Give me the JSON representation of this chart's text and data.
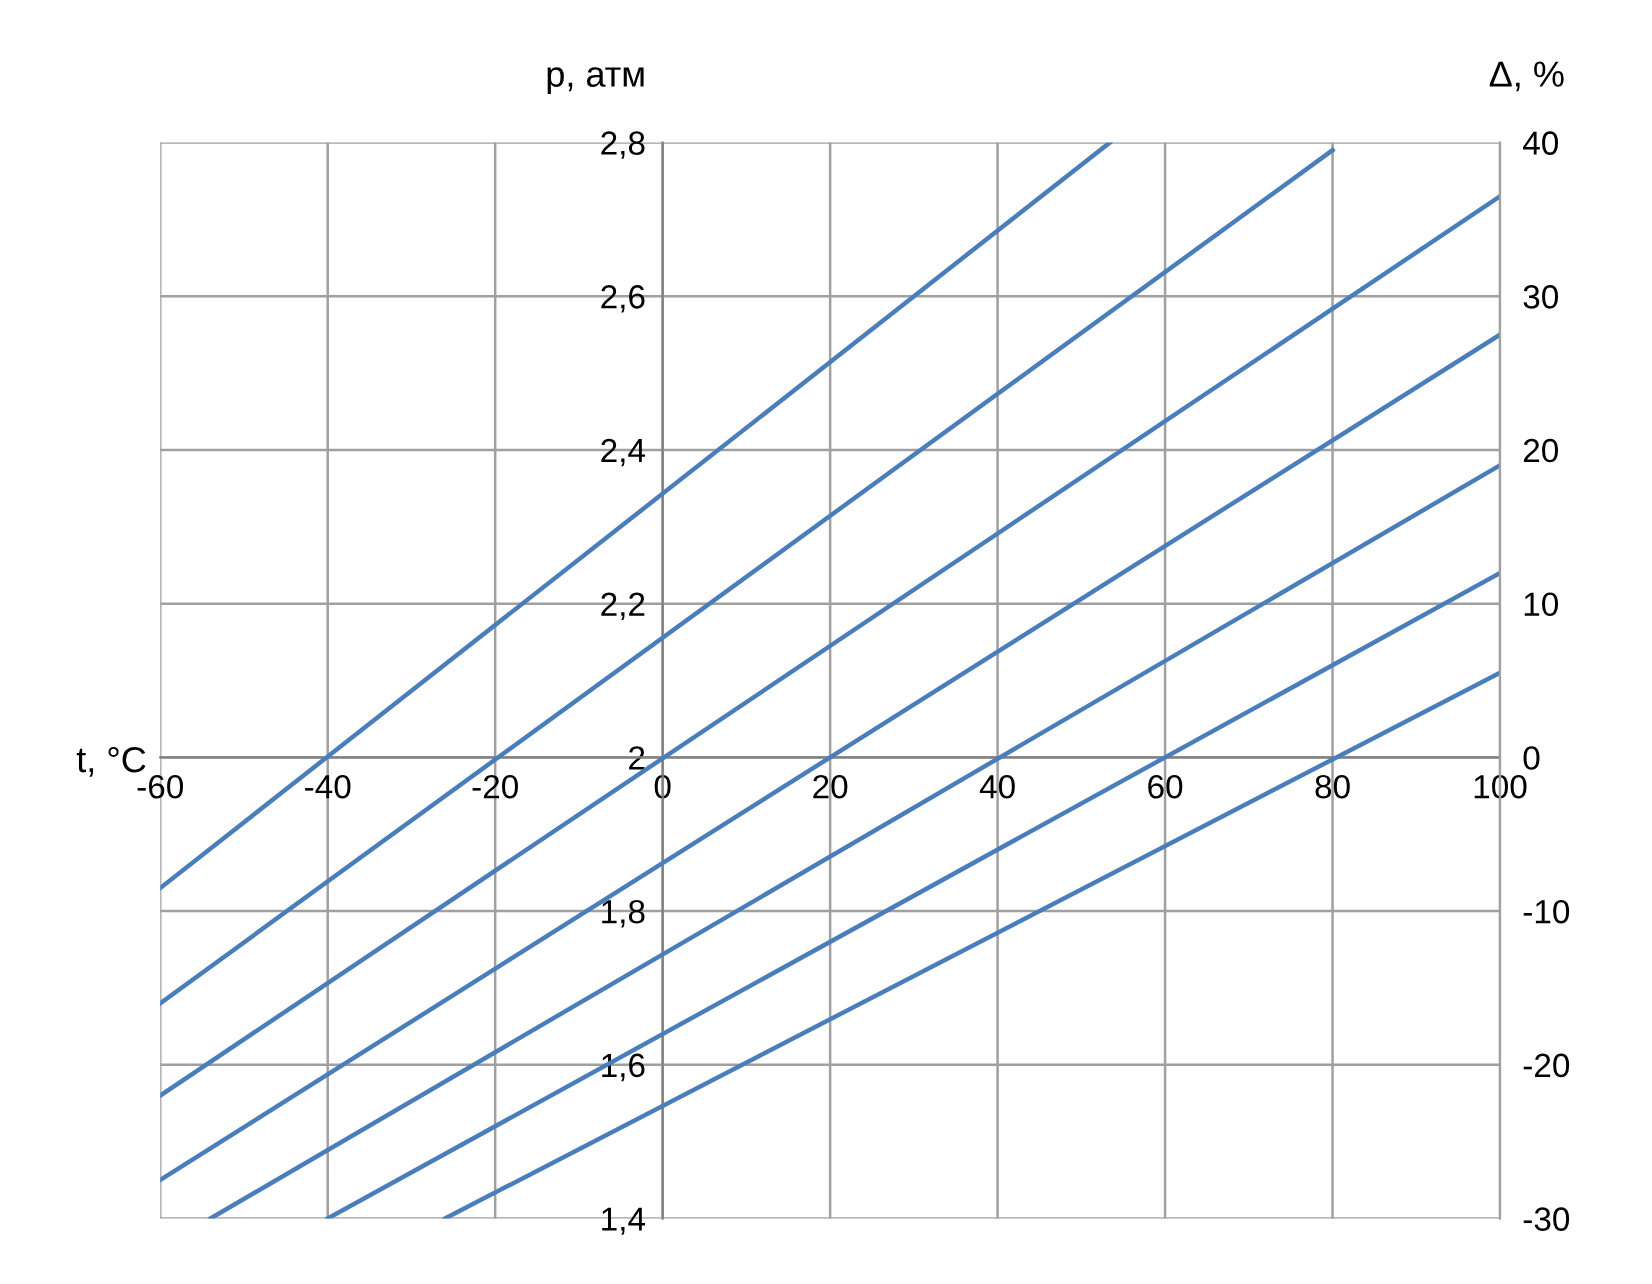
{
  "chart_data": {
    "type": "line",
    "xlabel": "t, °C",
    "ylabel": "p, атм",
    "y2label": "Δ, %",
    "series": [
      {
        "color": "#4a7ebb",
        "x": [
          -60,
          53.4
        ],
        "values": [
          1.83,
          2.8
        ]
      },
      {
        "color": "#4a7ebb",
        "x": [
          -60,
          80
        ],
        "values": [
          1.68,
          2.79
        ]
      },
      {
        "color": "#4a7ebb",
        "x": [
          -60,
          100
        ],
        "values": [
          1.56,
          2.73
        ]
      },
      {
        "color": "#4a7ebb",
        "x": [
          -60,
          100
        ],
        "values": [
          1.45,
          2.55
        ]
      },
      {
        "color": "#4a7ebb",
        "x": [
          -54,
          100
        ],
        "values": [
          1.4,
          2.38
        ]
      },
      {
        "color": "#4a7ebb",
        "x": [
          -40,
          100
        ],
        "values": [
          1.4,
          2.24
        ]
      },
      {
        "color": "#4a7ebb",
        "x": [
          -26,
          100
        ],
        "values": [
          1.4,
          2.11
        ]
      }
    ],
    "xlim": [
      -60,
      100
    ],
    "xticks": [
      -60,
      -40,
      -20,
      0,
      20,
      40,
      60,
      80,
      100
    ],
    "ylim": [
      1.4,
      2.8
    ],
    "yticks": [
      {
        "value": 1.4,
        "label": "1,4"
      },
      {
        "value": 1.6,
        "label": "1,6"
      },
      {
        "value": 1.8,
        "label": "1,8"
      },
      2,
      {
        "value": 2.2,
        "label": "2,2"
      },
      {
        "value": 2.4,
        "label": "2,4"
      },
      {
        "value": 2.6,
        "label": "2,6"
      },
      {
        "value": 2.8,
        "label": "2,8"
      }
    ],
    "y2lim": [
      -30,
      40
    ],
    "y2ticks": [
      -30,
      -20,
      -10,
      0,
      10,
      20,
      30,
      40
    ],
    "grid": true,
    "marker": "none",
    "line_style": "solid"
  }
}
